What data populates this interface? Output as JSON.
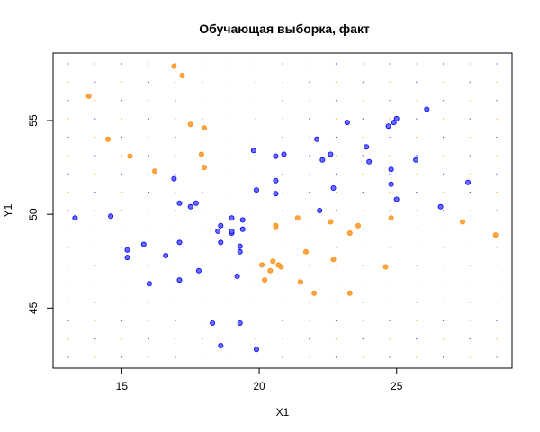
{
  "chart_data": {
    "type": "scatter",
    "title": "Обучающая выборка, факт",
    "xlabel": "X1",
    "ylabel": "Y1",
    "xlim": [
      12.5,
      29.2
    ],
    "ylim": [
      41.8,
      58.6
    ],
    "xticks": [
      15,
      20,
      25
    ],
    "yticks": [
      45,
      50,
      55
    ],
    "grid": false,
    "background_dot_grid": {
      "nx": 17,
      "ny": 17,
      "colors": [
        "#0000ff",
        "#ff8c00"
      ]
    },
    "series": [
      {
        "color": "#0000ff",
        "fill": "#6a6aff",
        "points": [
          [
            13.3,
            49.8
          ],
          [
            14.6,
            49.9
          ],
          [
            15.2,
            48.1
          ],
          [
            15.2,
            47.7
          ],
          [
            15.8,
            48.4
          ],
          [
            16.0,
            46.3
          ],
          [
            16.6,
            47.8
          ],
          [
            16.9,
            51.9
          ],
          [
            17.1,
            50.6
          ],
          [
            17.1,
            48.5
          ],
          [
            17.1,
            46.5
          ],
          [
            17.5,
            50.4
          ],
          [
            17.7,
            50.6
          ],
          [
            17.8,
            47.0
          ],
          [
            18.3,
            44.2
          ],
          [
            18.5,
            49.1
          ],
          [
            18.6,
            49.4
          ],
          [
            18.6,
            48.5
          ],
          [
            18.6,
            43.0
          ],
          [
            19.0,
            49.8
          ],
          [
            19.0,
            49.0
          ],
          [
            19.0,
            49.1
          ],
          [
            19.2,
            46.7
          ],
          [
            19.3,
            48.0
          ],
          [
            19.3,
            48.3
          ],
          [
            19.3,
            44.2
          ],
          [
            19.4,
            49.7
          ],
          [
            19.4,
            49.2
          ],
          [
            19.8,
            53.4
          ],
          [
            19.9,
            51.3
          ],
          [
            19.9,
            42.8
          ],
          [
            20.6,
            53.1
          ],
          [
            20.6,
            51.8
          ],
          [
            20.6,
            51.1
          ],
          [
            20.9,
            53.2
          ],
          [
            22.1,
            54.0
          ],
          [
            22.2,
            50.2
          ],
          [
            22.3,
            52.9
          ],
          [
            22.6,
            53.2
          ],
          [
            22.7,
            51.4
          ],
          [
            23.2,
            54.9
          ],
          [
            23.9,
            53.6
          ],
          [
            24.0,
            52.8
          ],
          [
            24.7,
            54.7
          ],
          [
            24.8,
            52.4
          ],
          [
            24.8,
            51.6
          ],
          [
            24.9,
            54.9
          ],
          [
            25.0,
            55.1
          ],
          [
            25.0,
            50.8
          ],
          [
            25.7,
            52.9
          ],
          [
            26.1,
            55.6
          ],
          [
            26.6,
            50.4
          ],
          [
            27.6,
            51.7
          ]
        ]
      },
      {
        "color": "#ff8c00",
        "fill": "#ffa64d",
        "points": [
          [
            13.8,
            56.3
          ],
          [
            14.5,
            54.0
          ],
          [
            15.3,
            53.1
          ],
          [
            16.2,
            52.3
          ],
          [
            16.9,
            57.9
          ],
          [
            17.2,
            57.4
          ],
          [
            17.5,
            54.8
          ],
          [
            17.9,
            53.2
          ],
          [
            18.0,
            54.6
          ],
          [
            18.0,
            52.5
          ],
          [
            20.1,
            47.3
          ],
          [
            20.2,
            46.5
          ],
          [
            20.4,
            47.0
          ],
          [
            20.5,
            47.5
          ],
          [
            20.6,
            49.4
          ],
          [
            20.6,
            49.3
          ],
          [
            20.7,
            47.3
          ],
          [
            20.8,
            47.2
          ],
          [
            21.4,
            49.8
          ],
          [
            21.5,
            46.4
          ],
          [
            21.7,
            48.0
          ],
          [
            22.0,
            45.8
          ],
          [
            22.6,
            49.6
          ],
          [
            22.7,
            47.6
          ],
          [
            23.3,
            49.0
          ],
          [
            23.3,
            45.8
          ],
          [
            23.6,
            49.4
          ],
          [
            24.6,
            47.2
          ],
          [
            24.8,
            49.8
          ],
          [
            27.4,
            49.6
          ],
          [
            28.6,
            48.9
          ]
        ]
      }
    ]
  }
}
